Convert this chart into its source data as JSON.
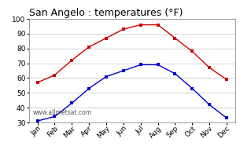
{
  "title": "San Angelo : temperatures (°F)",
  "months": [
    "Jan",
    "Feb",
    "Mar",
    "Apr",
    "May",
    "Jun",
    "Jul",
    "Aug",
    "Sep",
    "Oct",
    "Nov",
    "Dec"
  ],
  "high_temps": [
    57,
    62,
    72,
    81,
    87,
    93,
    96,
    96,
    87,
    78,
    67,
    59
  ],
  "low_temps": [
    31,
    34,
    43,
    53,
    61,
    65,
    69,
    69,
    63,
    53,
    42,
    33
  ],
  "high_color": "#cc0000",
  "low_color": "#0000cc",
  "marker": "s",
  "marker_size": 2.5,
  "ylim": [
    30,
    100
  ],
  "yticks": [
    30,
    40,
    50,
    60,
    70,
    80,
    90,
    100
  ],
  "grid_color": "#cccccc",
  "background_color": "#ffffff",
  "watermark": "www.allmetsat.com",
  "title_fontsize": 9,
  "tick_fontsize": 6.5
}
